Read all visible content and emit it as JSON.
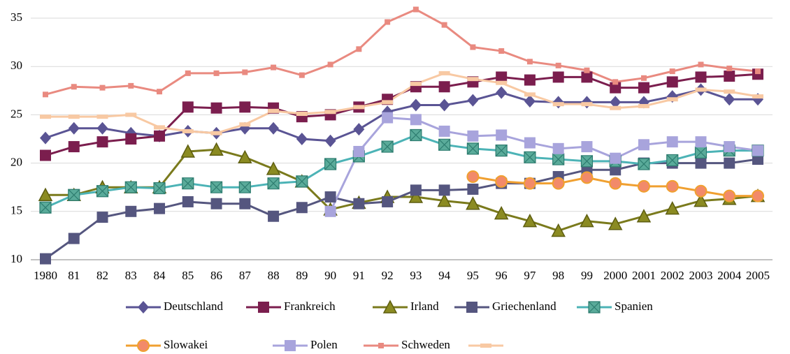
{
  "chart_data": {
    "type": "line",
    "categories": [
      "1980",
      "81",
      "82",
      "83",
      "84",
      "85",
      "86",
      "87",
      "88",
      "89",
      "90",
      "91",
      "92",
      "93",
      "94",
      "95",
      "96",
      "97",
      "98",
      "99",
      "2000",
      "2001",
      "2002",
      "2003",
      "2004",
      "2005"
    ],
    "ylim": [
      10,
      35
    ],
    "yticks": [
      10,
      15,
      20,
      25,
      30,
      35
    ],
    "grid": true,
    "series": [
      {
        "name": "Deutschland",
        "color": "#5a5494",
        "marker": "diamond",
        "values": [
          22.6,
          23.6,
          23.6,
          23.1,
          22.8,
          23.3,
          23.1,
          23.6,
          23.6,
          22.5,
          22.3,
          23.5,
          25.3,
          26.0,
          26.0,
          26.5,
          27.3,
          26.4,
          26.3,
          26.3,
          26.3,
          26.3,
          26.9,
          27.6,
          26.6,
          26.6
        ]
      },
      {
        "name": "Frankreich",
        "color": "#7b1e4e",
        "marker": "square",
        "values": [
          20.8,
          21.7,
          22.2,
          22.5,
          22.8,
          25.8,
          25.7,
          25.8,
          25.7,
          24.8,
          25.0,
          25.8,
          26.6,
          27.9,
          27.9,
          28.4,
          28.9,
          28.6,
          28.9,
          28.9,
          27.8,
          27.8,
          28.4,
          28.9,
          29.0,
          29.2
        ]
      },
      {
        "name": "Irland",
        "color": "#7a7a1c",
        "marker": "triangle",
        "values": [
          16.7,
          16.7,
          17.5,
          17.5,
          17.5,
          21.2,
          21.4,
          20.6,
          19.4,
          18.1,
          15.2,
          15.9,
          16.5,
          16.5,
          16.1,
          15.8,
          14.8,
          14.0,
          13.0,
          14.0,
          13.7,
          14.5,
          15.3,
          16.1,
          16.3,
          16.6
        ]
      },
      {
        "name": "Griechenland",
        "color": "#55567f",
        "marker": "square",
        "values": [
          10.1,
          12.2,
          14.4,
          15.0,
          15.3,
          16.0,
          15.8,
          15.8,
          14.5,
          15.4,
          16.5,
          15.8,
          16.0,
          17.2,
          17.2,
          17.3,
          17.9,
          17.9,
          18.6,
          19.3,
          19.3,
          20.0,
          20.0,
          20.0,
          20.0,
          20.4
        ]
      },
      {
        "name": "Spanien",
        "color": "#4cb3b6",
        "marker": "xsquare",
        "values": [
          15.4,
          16.7,
          17.1,
          17.5,
          17.4,
          17.9,
          17.5,
          17.5,
          17.9,
          18.1,
          19.9,
          20.7,
          21.7,
          22.9,
          21.9,
          21.5,
          21.3,
          20.6,
          20.4,
          20.2,
          20.2,
          19.9,
          20.3,
          21.1,
          21.3,
          21.3
        ]
      },
      {
        "name": "Slowakei",
        "color": "#f0a030",
        "marker": "circle",
        "values": [
          null,
          null,
          null,
          null,
          null,
          null,
          null,
          null,
          null,
          null,
          null,
          null,
          null,
          null,
          null,
          18.6,
          18.1,
          17.9,
          17.9,
          18.5,
          17.9,
          17.6,
          17.6,
          17.1,
          16.6,
          16.6
        ]
      },
      {
        "name": "Polen",
        "color": "#a8a4dc",
        "marker": "square",
        "values": [
          null,
          null,
          null,
          null,
          null,
          null,
          null,
          null,
          null,
          null,
          15.0,
          21.2,
          24.7,
          24.5,
          23.3,
          22.8,
          22.9,
          22.1,
          21.5,
          21.7,
          20.5,
          21.9,
          22.2,
          22.2,
          21.7,
          21.3
        ]
      },
      {
        "name": "Schweden",
        "color": "#e98a80",
        "marker": "smallsquare",
        "values": [
          27.1,
          27.9,
          27.8,
          28.0,
          27.4,
          29.3,
          29.3,
          29.4,
          29.9,
          29.1,
          30.2,
          31.8,
          34.6,
          35.9,
          34.3,
          32.0,
          31.6,
          30.5,
          30.1,
          29.6,
          28.4,
          28.8,
          29.5,
          30.2,
          29.8,
          29.5
        ]
      },
      {
        "name": null,
        "color": "#f8c9a3",
        "marker": "dash",
        "values": [
          24.8,
          24.8,
          24.8,
          25.0,
          23.7,
          23.3,
          23.1,
          24.0,
          25.4,
          25.1,
          25.3,
          25.8,
          26.3,
          28.2,
          29.3,
          28.7,
          28.3,
          27.1,
          26.1,
          26.1,
          25.7,
          25.9,
          26.6,
          27.6,
          27.4,
          26.9
        ]
      }
    ]
  }
}
